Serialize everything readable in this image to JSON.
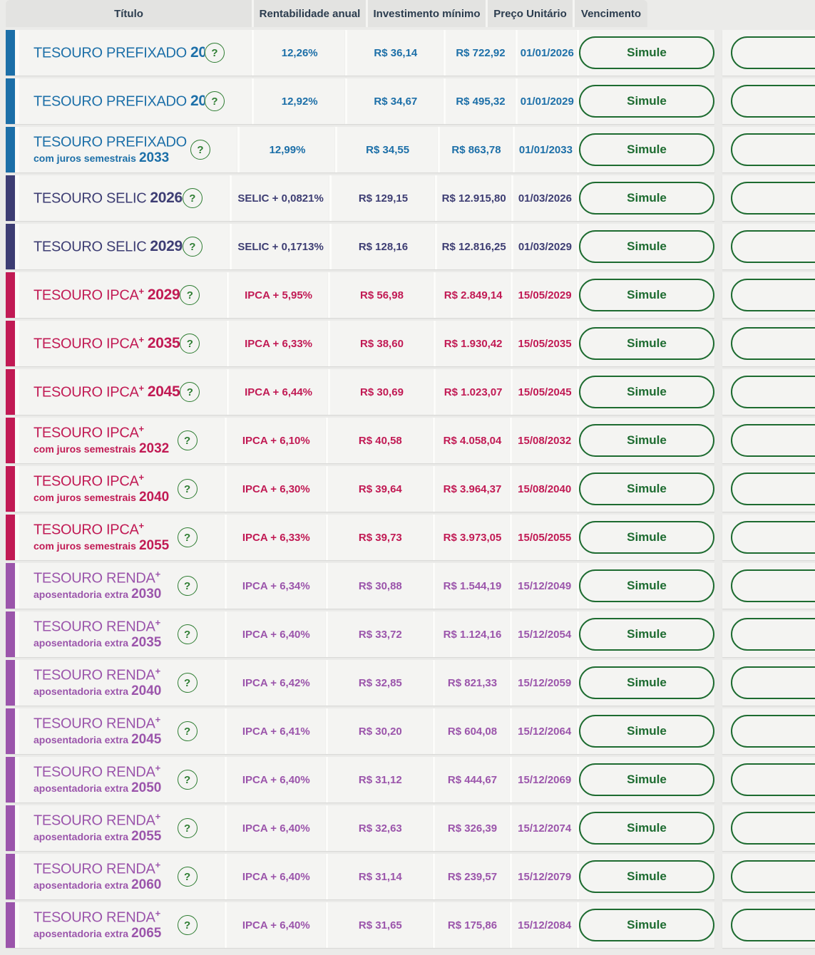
{
  "colors": {
    "prefixado": "#1c6fa8",
    "selic": "#3d3d73",
    "ipca": "#c11a54",
    "renda": "#9b55ab",
    "button_green": "#1d6b30",
    "header_text": "#2b3c4e"
  },
  "table": {
    "headers": [
      "Título",
      "Rentabilidade anual",
      "Investimento mínimo",
      "Preço Unitário",
      "Vencimento"
    ],
    "help_icon_label": "?",
    "simulate_label": "Simule",
    "rows": [
      {
        "theme": "prefixado",
        "line1": "TESOURO PREFIXADO",
        "sup": "",
        "line2": "",
        "year": "2026",
        "rate": "12,26%",
        "min": "R$ 36,14",
        "price": "R$ 722,92",
        "maturity": "01/01/2026"
      },
      {
        "theme": "prefixado",
        "line1": "TESOURO PREFIXADO",
        "sup": "",
        "line2": "",
        "year": "2029",
        "rate": "12,92%",
        "min": "R$ 34,67",
        "price": "R$ 495,32",
        "maturity": "01/01/2029"
      },
      {
        "theme": "prefixado",
        "line1": "TESOURO PREFIXADO",
        "sup": "",
        "line2": "com juros semestrais",
        "year": "2033",
        "rate": "12,99%",
        "min": "R$ 34,55",
        "price": "R$ 863,78",
        "maturity": "01/01/2033"
      },
      {
        "theme": "selic",
        "line1": "TESOURO SELIC",
        "sup": "",
        "line2": "",
        "year": "2026",
        "rate": "SELIC + 0,0821%",
        "min": "R$ 129,15",
        "price": "R$ 12.915,80",
        "maturity": "01/03/2026"
      },
      {
        "theme": "selic",
        "line1": "TESOURO SELIC",
        "sup": "",
        "line2": "",
        "year": "2029",
        "rate": "SELIC + 0,1713%",
        "min": "R$ 128,16",
        "price": "R$ 12.816,25",
        "maturity": "01/03/2029"
      },
      {
        "theme": "ipca",
        "line1": "TESOURO IPCA",
        "sup": "+",
        "line2": "",
        "year": "2029",
        "rate": "IPCA + 5,95%",
        "min": "R$ 56,98",
        "price": "R$ 2.849,14",
        "maturity": "15/05/2029"
      },
      {
        "theme": "ipca",
        "line1": "TESOURO IPCA",
        "sup": "+",
        "line2": "",
        "year": "2035",
        "rate": "IPCA + 6,33%",
        "min": "R$ 38,60",
        "price": "R$ 1.930,42",
        "maturity": "15/05/2035"
      },
      {
        "theme": "ipca",
        "line1": "TESOURO IPCA",
        "sup": "+",
        "line2": "",
        "year": "2045",
        "rate": "IPCA + 6,44%",
        "min": "R$ 30,69",
        "price": "R$ 1.023,07",
        "maturity": "15/05/2045"
      },
      {
        "theme": "ipca",
        "line1": "TESOURO IPCA",
        "sup": "+",
        "line2": "com juros semestrais",
        "year": "2032",
        "rate": "IPCA + 6,10%",
        "min": "R$ 40,58",
        "price": "R$ 4.058,04",
        "maturity": "15/08/2032"
      },
      {
        "theme": "ipca",
        "line1": "TESOURO IPCA",
        "sup": "+",
        "line2": "com juros semestrais",
        "year": "2040",
        "rate": "IPCA + 6,30%",
        "min": "R$ 39,64",
        "price": "R$ 3.964,37",
        "maturity": "15/08/2040"
      },
      {
        "theme": "ipca",
        "line1": "TESOURO IPCA",
        "sup": "+",
        "line2": "com juros semestrais",
        "year": "2055",
        "rate": "IPCA + 6,33%",
        "min": "R$ 39,73",
        "price": "R$ 3.973,05",
        "maturity": "15/05/2055"
      },
      {
        "theme": "renda",
        "line1": "TESOURO RENDA",
        "sup": "+",
        "line2": "aposentadoria extra",
        "year": "2030",
        "rate": "IPCA + 6,34%",
        "min": "R$ 30,88",
        "price": "R$ 1.544,19",
        "maturity": "15/12/2049"
      },
      {
        "theme": "renda",
        "line1": "TESOURO RENDA",
        "sup": "+",
        "line2": "aposentadoria extra",
        "year": "2035",
        "rate": "IPCA + 6,40%",
        "min": "R$ 33,72",
        "price": "R$ 1.124,16",
        "maturity": "15/12/2054"
      },
      {
        "theme": "renda",
        "line1": "TESOURO RENDA",
        "sup": "+",
        "line2": "aposentadoria extra",
        "year": "2040",
        "rate": "IPCA + 6,42%",
        "min": "R$ 32,85",
        "price": "R$ 821,33",
        "maturity": "15/12/2059"
      },
      {
        "theme": "renda",
        "line1": "TESOURO RENDA",
        "sup": "+",
        "line2": "aposentadoria extra",
        "year": "2045",
        "rate": "IPCA + 6,41%",
        "min": "R$ 30,20",
        "price": "R$ 604,08",
        "maturity": "15/12/2064"
      },
      {
        "theme": "renda",
        "line1": "TESOURO RENDA",
        "sup": "+",
        "line2": "aposentadoria extra",
        "year": "2050",
        "rate": "IPCA + 6,40%",
        "min": "R$ 31,12",
        "price": "R$ 444,67",
        "maturity": "15/12/2069"
      },
      {
        "theme": "renda",
        "line1": "TESOURO RENDA",
        "sup": "+",
        "line2": "aposentadoria extra",
        "year": "2055",
        "rate": "IPCA + 6,40%",
        "min": "R$ 32,63",
        "price": "R$ 326,39",
        "maturity": "15/12/2074"
      },
      {
        "theme": "renda",
        "line1": "TESOURO RENDA",
        "sup": "+",
        "line2": "aposentadoria extra",
        "year": "2060",
        "rate": "IPCA + 6,40%",
        "min": "R$ 31,14",
        "price": "R$ 239,57",
        "maturity": "15/12/2079"
      },
      {
        "theme": "renda",
        "line1": "TESOURO RENDA",
        "sup": "+",
        "line2": "aposentadoria extra",
        "year": "2065",
        "rate": "IPCA + 6,40%",
        "min": "R$ 31,65",
        "price": "R$ 175,86",
        "maturity": "15/12/2084"
      }
    ]
  }
}
